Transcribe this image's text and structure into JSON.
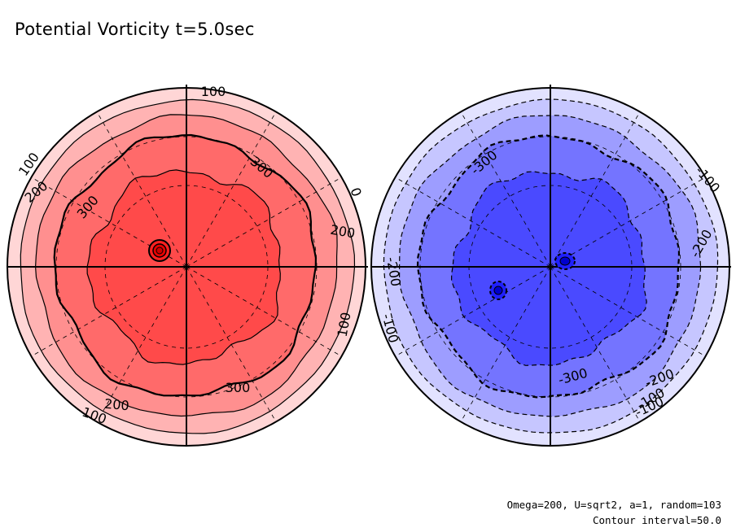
{
  "title": "Potential Vorticity t=5.0sec",
  "footnote": {
    "params": "Omega=200, U=sqrt2, a=1, random=103",
    "contour": "Contour interval=50.0"
  },
  "colors": {
    "red_levels": [
      "#ffd6d6",
      "#ffb3b3",
      "#ff8f8f",
      "#ff6a6a",
      "#ff4a4a"
    ],
    "blue_levels": [
      "#e2e2ff",
      "#c6c6ff",
      "#9d9dff",
      "#7474ff",
      "#4a4aff"
    ],
    "outline": "#000000"
  },
  "left_map": {
    "hemisphere_color": "red",
    "contour_labels": [
      "100",
      "100",
      "200",
      "300",
      "300",
      "200",
      "0",
      "100",
      "300",
      "200",
      "100"
    ]
  },
  "right_map": {
    "hemisphere_color": "blue",
    "contour_labels": [
      "-300",
      "-100",
      "-200",
      "-200",
      "-100",
      "-300",
      "-200",
      "-100",
      "-100"
    ]
  }
}
